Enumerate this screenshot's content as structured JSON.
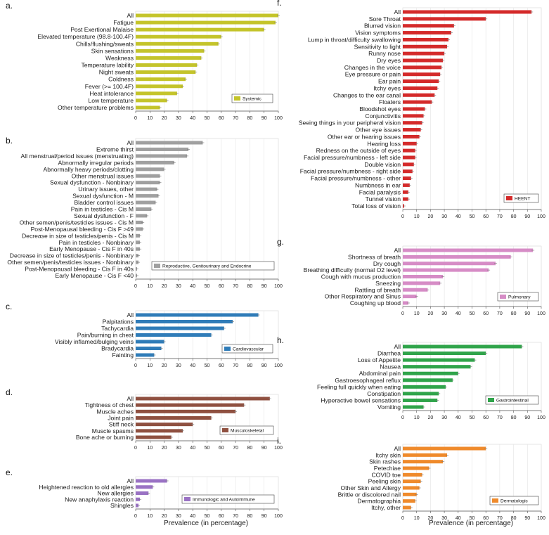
{
  "x_axis_label": "Prevalence (in percentage)",
  "chart_data": [
    {
      "type": "bar",
      "panel_label": "a.",
      "legend": "Systemic",
      "color": "#c4c42a",
      "xlim": [
        0,
        100
      ],
      "xticks": [
        "0",
        "10",
        "20",
        "30",
        "40",
        "50",
        "60",
        "70",
        "80",
        "90",
        "100"
      ],
      "categories": [
        "All",
        "Fatigue",
        "Post Exertional Malaise",
        "Elevated temperature (98.8-100.4F)",
        "Chills/flushing/sweats",
        "Skin sensations",
        "Weakness",
        "Temperature lability",
        "Night sweats",
        "Coldness",
        "Fever (>= 100.4F)",
        "Heat intolerance",
        "Low temperature",
        "Other temperature problems"
      ],
      "values": [
        100,
        98,
        90,
        60,
        58,
        48,
        46,
        43,
        42,
        35,
        33,
        29,
        22,
        17
      ]
    },
    {
      "type": "bar",
      "panel_label": "b.",
      "legend": "Reproductive, Genitourinary and Endocrine",
      "color": "#a0a0a0",
      "xlim": [
        0,
        100
      ],
      "xticks": [
        "0",
        "10",
        "20",
        "30",
        "40",
        "50",
        "60",
        "70",
        "80",
        "90",
        "100"
      ],
      "categories": [
        "All",
        "Extreme thirst",
        "All menstrual/period issues (menstruating)",
        "Abnormally irregular periods",
        "Abnormally heavy periods/clotting",
        "Other menstrual issues",
        "Sexual dysfunction - Nonbinary",
        "Urinary issues, other",
        "Sexual dysfunction - M",
        "Bladder control issues",
        "Pain in testicles - Cis M",
        "Sexual dysfunction - F",
        "Other semen/penis/testicles issues - Cis M",
        "Post-Menopausal bleeding - Cis F >49",
        "Decrease in size of testicles/penis - Cis M",
        "Pain in testicles - Nonbinary",
        "Early Menopause - Cis F in 40s",
        "Decrease in size of testicles/penis - Nonbinary",
        "Other semen/penis/testicles issues - Nonbinary",
        "Post-Menopausal bleeding - Cis F in 40s",
        "Early Menopause - Cis F <40"
      ],
      "values": [
        47,
        37,
        36,
        27,
        20,
        17,
        17,
        15,
        16,
        14,
        11,
        8,
        5,
        5,
        3,
        3,
        3,
        2,
        2,
        1,
        1
      ]
    },
    {
      "type": "bar",
      "panel_label": "c.",
      "legend": "Cardiovascular",
      "color": "#2f7cb8",
      "xlim": [
        0,
        100
      ],
      "xticks": [
        "0",
        "10",
        "20",
        "30",
        "40",
        "50",
        "60",
        "70",
        "80",
        "90",
        "100"
      ],
      "categories": [
        "All",
        "Palpitations",
        "Tachycardia",
        "Pain/burning in chest",
        "Visibly inflamed/bulging veins",
        "Bradycardia",
        "Fainting"
      ],
      "values": [
        86,
        68,
        62,
        53,
        20,
        18,
        13
      ]
    },
    {
      "type": "bar",
      "panel_label": "d.",
      "legend": "Musculoskeletal",
      "color": "#8f5040",
      "xlim": [
        0,
        100
      ],
      "xticks": [
        "0",
        "10",
        "20",
        "30",
        "40",
        "50",
        "60",
        "70",
        "80",
        "90",
        "100"
      ],
      "categories": [
        "All",
        "Tightness of chest",
        "Muscle aches",
        "Joint pain",
        "Stiff neck",
        "Muscle spasms",
        "Bone ache or burning"
      ],
      "values": [
        94,
        76,
        70,
        53,
        40,
        33,
        25
      ]
    },
    {
      "type": "bar",
      "panel_label": "e.",
      "legend": "Immunologic and Autoimmune",
      "color": "#9a72c4",
      "xlim": [
        0,
        100
      ],
      "xticks": [
        "0",
        "10",
        "20",
        "30",
        "40",
        "50",
        "60",
        "70",
        "80",
        "90",
        "100"
      ],
      "categories": [
        "All",
        "Heightened reaction to old allergies",
        "New allergies",
        "New anaphylaxis reaction",
        "Shingles"
      ],
      "values": [
        22,
        12,
        9,
        3,
        2
      ]
    },
    {
      "type": "bar",
      "panel_label": "f.",
      "legend": "HEENT",
      "color": "#d42a2a",
      "xlim": [
        0,
        100
      ],
      "xticks": [
        "0",
        "10",
        "20",
        "30",
        "40",
        "50",
        "60",
        "70",
        "80",
        "90",
        "100"
      ],
      "categories": [
        "All",
        "Sore Throat",
        "Blurred vision",
        "Vision symptoms",
        "Lump in throat/difficulty swallowing",
        "Sensitivity to light",
        "Runny nose",
        "Dry eyes",
        "Changes in the voice",
        "Eye pressure or pain",
        "Ear pain",
        "Itchy eyes",
        "Changes to the ear canal",
        "Floaters",
        "Bloodshot eyes",
        "Conjunctivitis",
        "Seeing things in your peripheral vision",
        "Other eye issues",
        "Other ear or hearing issues",
        "Hearing loss",
        "Redness on the outside of eyes",
        "Facial pressure/numbness - left side",
        "Double vision",
        "Facial pressure/numbness - right side",
        "Facial pressure/numbness - other",
        "Numbness in ear",
        "Facial paralysis",
        "Tunnel vision",
        "Total loss of vision"
      ],
      "values": [
        93,
        60,
        37,
        35,
        33,
        32,
        30,
        29,
        28,
        27,
        26,
        25,
        23,
        21,
        16,
        15,
        14,
        13,
        12,
        10,
        9,
        9,
        8,
        7,
        6,
        5,
        4,
        4,
        1
      ]
    },
    {
      "type": "bar",
      "panel_label": "g.",
      "legend": "Pulmonary",
      "color": "#d68cc6",
      "xlim": [
        0,
        100
      ],
      "xticks": [
        "0",
        "10",
        "20",
        "30",
        "40",
        "50",
        "60",
        "70",
        "80",
        "90",
        "100"
      ],
      "categories": [
        "All",
        "Shortness of breath",
        "Dry cough",
        "Breathing difficulty (normal O2 level)",
        "Cough with mucus production",
        "Sneezing",
        "Rattling of breath",
        "Other Respiratory and Sinus",
        "Coughing up blood"
      ],
      "values": [
        94,
        78,
        67,
        62,
        29,
        27,
        18,
        10,
        4
      ]
    },
    {
      "type": "bar",
      "panel_label": "h.",
      "legend": "Gastrointestinal",
      "color": "#2fa44a",
      "xlim": [
        0,
        100
      ],
      "xticks": [
        "0",
        "10",
        "20",
        "30",
        "40",
        "50",
        "60",
        "70",
        "80",
        "90",
        "100"
      ],
      "categories": [
        "All",
        "Diarrhea",
        "Loss of Appetite",
        "Nausea",
        "Abdominal pain",
        "Gastroesophageal reflux",
        "Feeling full quickly when eating",
        "Constipation",
        "Hyperactive bowel sensations",
        "Vomiting"
      ],
      "values": [
        86,
        60,
        52,
        49,
        40,
        36,
        31,
        26,
        25,
        15
      ]
    },
    {
      "type": "bar",
      "panel_label": "i.",
      "legend": "Dermatologic",
      "color": "#ef8a2b",
      "xlim": [
        0,
        100
      ],
      "xticks": [
        "0",
        "10",
        "20",
        "30",
        "40",
        "50",
        "60",
        "70",
        "80",
        "90",
        "100"
      ],
      "categories": [
        "All",
        "Itchy skin",
        "Skin rashes",
        "Petechiae",
        "COVID toe",
        "Peeling skin",
        "Other Skin and Allergy",
        "Brittle or discolored nail",
        "Dermatographia",
        "Itchy, other"
      ],
      "values": [
        60,
        32,
        29,
        19,
        14,
        13,
        12,
        10,
        9,
        6
      ]
    }
  ]
}
